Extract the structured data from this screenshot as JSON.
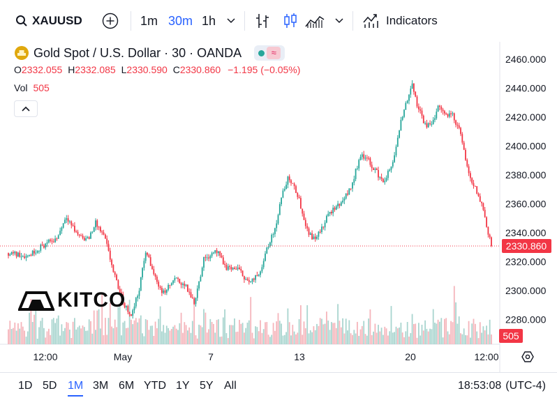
{
  "toolbar": {
    "symbol": "XAUUSD",
    "intervals": [
      "1m",
      "30m",
      "1h"
    ],
    "active_interval": "30m",
    "indicators_label": "Indicators"
  },
  "legend": {
    "title": "Gold Spot / U.S. Dollar · 30 · OANDA",
    "ohlc": {
      "o_label": "O",
      "o": "2332.055",
      "h_label": "H",
      "h": "2332.085",
      "l_label": "L",
      "l": "2330.590",
      "c_label": "C",
      "c": "2330.860",
      "change": "−1.195 (−0.05%)"
    },
    "vol_label": "Vol",
    "vol_value": "505"
  },
  "watermark": {
    "text": "KITCO"
  },
  "bottom": {
    "ranges": [
      "1D",
      "5D",
      "1M",
      "3M",
      "6M",
      "YTD",
      "1Y",
      "5Y",
      "All"
    ],
    "active_range": "1M",
    "time": "18:53:08",
    "timezone": "(UTC-4)"
  },
  "colors": {
    "up": "#26a69a",
    "down": "#f23645",
    "up_volume": "#a9d5cf",
    "down_volume": "#f5b5bb",
    "accent": "#2962ff"
  },
  "chart_data": {
    "type": "candlestick",
    "symbol": "XAUUSD",
    "interval": "30m",
    "y_ticks": [
      2280,
      2300,
      2320,
      2340,
      2360,
      2380,
      2400,
      2420,
      2440,
      2460
    ],
    "y_tick_labels": [
      "2280.000",
      "2300.000",
      "2320.000",
      "2340.000",
      "2360.000",
      "2380.000",
      "2400.000",
      "2420.000",
      "2440.000",
      "2460.000"
    ],
    "ylim": [
      2263,
      2470
    ],
    "x_ticks": [
      "12:00",
      "May",
      "7",
      "13",
      "20",
      "12:00"
    ],
    "last_price": 2330.86,
    "last_price_label": "2330.860",
    "last_volume": 505,
    "last_volume_label": "505",
    "price_path": [
      [
        0,
        2326
      ],
      [
        0.04,
        2324
      ],
      [
        0.07,
        2331
      ],
      [
        0.1,
        2336
      ],
      [
        0.12,
        2352
      ],
      [
        0.14,
        2340
      ],
      [
        0.165,
        2335
      ],
      [
        0.18,
        2347
      ],
      [
        0.2,
        2336
      ],
      [
        0.22,
        2310
      ],
      [
        0.24,
        2290
      ],
      [
        0.255,
        2283
      ],
      [
        0.27,
        2300
      ],
      [
        0.285,
        2328
      ],
      [
        0.3,
        2312
      ],
      [
        0.32,
        2298
      ],
      [
        0.345,
        2308
      ],
      [
        0.365,
        2304
      ],
      [
        0.385,
        2292
      ],
      [
        0.405,
        2322
      ],
      [
        0.43,
        2328
      ],
      [
        0.45,
        2316
      ],
      [
        0.475,
        2315
      ],
      [
        0.5,
        2305
      ],
      [
        0.52,
        2312
      ],
      [
        0.535,
        2330
      ],
      [
        0.55,
        2340
      ],
      [
        0.565,
        2364
      ],
      [
        0.58,
        2379
      ],
      [
        0.6,
        2365
      ],
      [
        0.615,
        2346
      ],
      [
        0.628,
        2336
      ],
      [
        0.645,
        2340
      ],
      [
        0.665,
        2354
      ],
      [
        0.68,
        2358
      ],
      [
        0.7,
        2366
      ],
      [
        0.712,
        2374
      ],
      [
        0.73,
        2395
      ],
      [
        0.745,
        2390
      ],
      [
        0.76,
        2383
      ],
      [
        0.775,
        2375
      ],
      [
        0.79,
        2383
      ],
      [
        0.8,
        2394
      ],
      [
        0.815,
        2420
      ],
      [
        0.835,
        2443
      ],
      [
        0.845,
        2430
      ],
      [
        0.86,
        2416
      ],
      [
        0.875,
        2413
      ],
      [
        0.89,
        2428
      ],
      [
        0.905,
        2422
      ],
      [
        0.92,
        2421
      ],
      [
        0.935,
        2410
      ],
      [
        0.95,
        2384
      ],
      [
        0.965,
        2372
      ],
      [
        0.98,
        2360
      ],
      [
        1,
        2331
      ]
    ]
  }
}
